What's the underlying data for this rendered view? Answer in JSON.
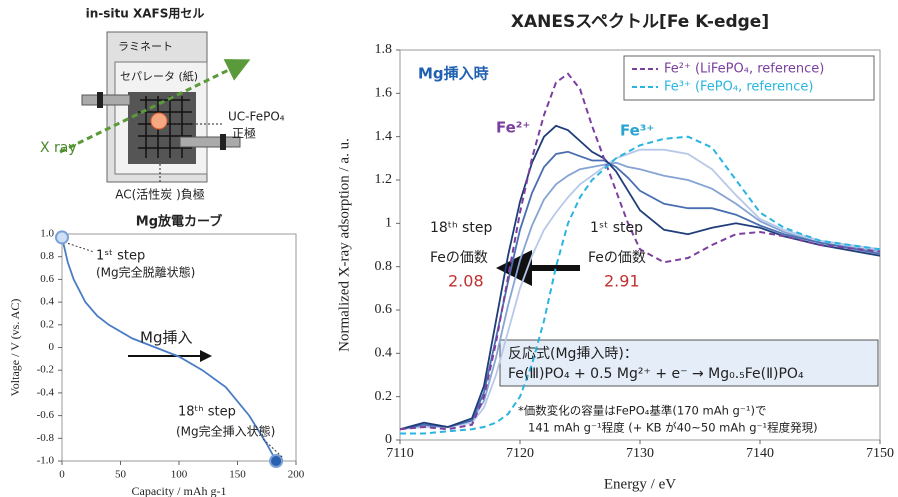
{
  "diagram": {
    "title": "in-situ XAFS用セル",
    "laminate": "ラミネート",
    "separator": "セパレータ (紙)",
    "cathode_material": "UC-FePO₄",
    "cathode": "正極",
    "xray": "X ray",
    "anode": "AC(活性炭 )負極"
  },
  "chart_data": [
    {
      "type": "line",
      "title": "Mg放電カーブ",
      "xlabel": "Capacity / mAh g-1",
      "ylabel": "Voltage / V (vs. AC)",
      "x": [
        0,
        5,
        10,
        20,
        30,
        40,
        60,
        80,
        100,
        120,
        140,
        160,
        175,
        183
      ],
      "series": [
        {
          "color": "#4a7cc4",
          "values": [
            0.97,
            0.75,
            0.6,
            0.4,
            0.28,
            0.2,
            0.08,
            0.0,
            -0.08,
            -0.2,
            -0.35,
            -0.6,
            -0.85,
            -1.0
          ]
        }
      ],
      "xlim": [
        0,
        200
      ],
      "xticks": [
        0,
        50,
        100,
        150,
        200
      ],
      "ylim": [
        -1,
        1
      ],
      "yticks": [
        {
          "value": -1,
          "label": "-1.0"
        },
        -0.8,
        -0.6,
        -0.4,
        -0.2,
        0,
        0.2,
        0.4,
        0.6,
        0.8,
        {
          "value": 1,
          "label": "1.0"
        }
      ],
      "grid": false,
      "annotations": [
        "1ˢᵗ step",
        "(Mg完全脱離状態)",
        "Mg挿入",
        "18ᵗʰ step",
        "(Mg完全挿入状態)"
      ]
    },
    {
      "type": "line",
      "title": "XANESスペクトル[Fe K-edge]",
      "xlabel": "Energy / eV",
      "ylabel": "Normalized X-ray adsorption / a. u.",
      "x": [
        7110,
        7112,
        7114,
        7116,
        7117,
        7118,
        7119,
        7120,
        7121,
        7122,
        7123,
        7124,
        7125,
        7126,
        7127,
        7128,
        7129,
        7130,
        7132,
        7134,
        7136,
        7138,
        7140,
        7142,
        7145,
        7150
      ],
      "series": [
        {
          "color": "#b8c8e8",
          "values": [
            0.05,
            0.06,
            0.06,
            0.08,
            0.15,
            0.3,
            0.5,
            0.7,
            0.85,
            0.97,
            1.05,
            1.12,
            1.18,
            1.22,
            1.26,
            1.3,
            1.32,
            1.34,
            1.34,
            1.32,
            1.25,
            1.13,
            1.02,
            0.97,
            0.92,
            0.88
          ]
        },
        {
          "color": "#85a3d4",
          "values": [
            0.05,
            0.07,
            0.06,
            0.09,
            0.18,
            0.38,
            0.62,
            0.83,
            0.99,
            1.11,
            1.18,
            1.22,
            1.25,
            1.26,
            1.27,
            1.28,
            1.26,
            1.25,
            1.22,
            1.2,
            1.16,
            1.09,
            1.01,
            0.96,
            0.91,
            0.87
          ]
        },
        {
          "color": "#4a6fb0",
          "values": [
            0.05,
            0.07,
            0.06,
            0.09,
            0.22,
            0.47,
            0.73,
            0.97,
            1.14,
            1.26,
            1.32,
            1.33,
            1.31,
            1.29,
            1.29,
            1.26,
            1.21,
            1.15,
            1.09,
            1.07,
            1.07,
            1.04,
            0.99,
            0.95,
            0.91,
            0.86
          ]
        },
        {
          "color": "#1f3d7a",
          "values": [
            0.05,
            0.08,
            0.06,
            0.1,
            0.25,
            0.55,
            0.85,
            1.1,
            1.28,
            1.4,
            1.45,
            1.43,
            1.38,
            1.33,
            1.3,
            1.24,
            1.15,
            1.06,
            0.97,
            0.95,
            0.98,
            1.0,
            0.98,
            0.94,
            0.9,
            0.85
          ]
        },
        {
          "name": "Fe²⁺ (LiFePO₄, reference)",
          "color": "#7b3f9e",
          "dashed": true,
          "values": [
            0.05,
            0.06,
            0.05,
            0.07,
            0.2,
            0.45,
            0.75,
            1.05,
            1.3,
            1.5,
            1.65,
            1.69,
            1.62,
            1.45,
            1.3,
            1.15,
            1.0,
            0.88,
            0.82,
            0.84,
            0.9,
            0.95,
            0.96,
            0.94,
            0.9,
            0.87
          ]
        },
        {
          "name": "Fe³⁺ (FePO₄, reference)",
          "color": "#29b5e0",
          "dashed": true,
          "values": [
            0.03,
            0.03,
            0.04,
            0.05,
            0.06,
            0.08,
            0.12,
            0.2,
            0.35,
            0.55,
            0.8,
            1.0,
            1.12,
            1.2,
            1.25,
            1.3,
            1.33,
            1.36,
            1.39,
            1.4,
            1.35,
            1.2,
            1.05,
            0.98,
            0.92,
            0.88
          ]
        }
      ],
      "xlim": [
        7110,
        7150
      ],
      "xticks": [
        7110,
        7120,
        7130,
        7140,
        7150
      ],
      "ylim": [
        0,
        1.8
      ],
      "yticks": [
        0,
        0.2,
        0.4,
        0.6,
        0.8,
        1,
        1.2,
        1.4,
        1.6,
        1.8
      ],
      "grid": false,
      "legend": "upper right",
      "annotations": [
        "Mg挿入時",
        "Fe²⁺",
        "Fe³⁺",
        "18ᵗʰ step",
        "Feの価数",
        "2.08",
        "1ˢᵗ step",
        "Feの価数",
        "2.91",
        "反応式(Mg挿入時)：",
        "Fe(Ⅲ)PO₄ + 0.5 Mg²⁺ + e⁻ → Mg₀.₅Fe(Ⅱ)PO₄",
        "*価数変化の容量はFePO₄基準(170 mAh g⁻¹)で",
        "141 mAh g⁻¹程度 (+ KB が40~50 mAh g⁻¹程度発現)"
      ]
    }
  ]
}
